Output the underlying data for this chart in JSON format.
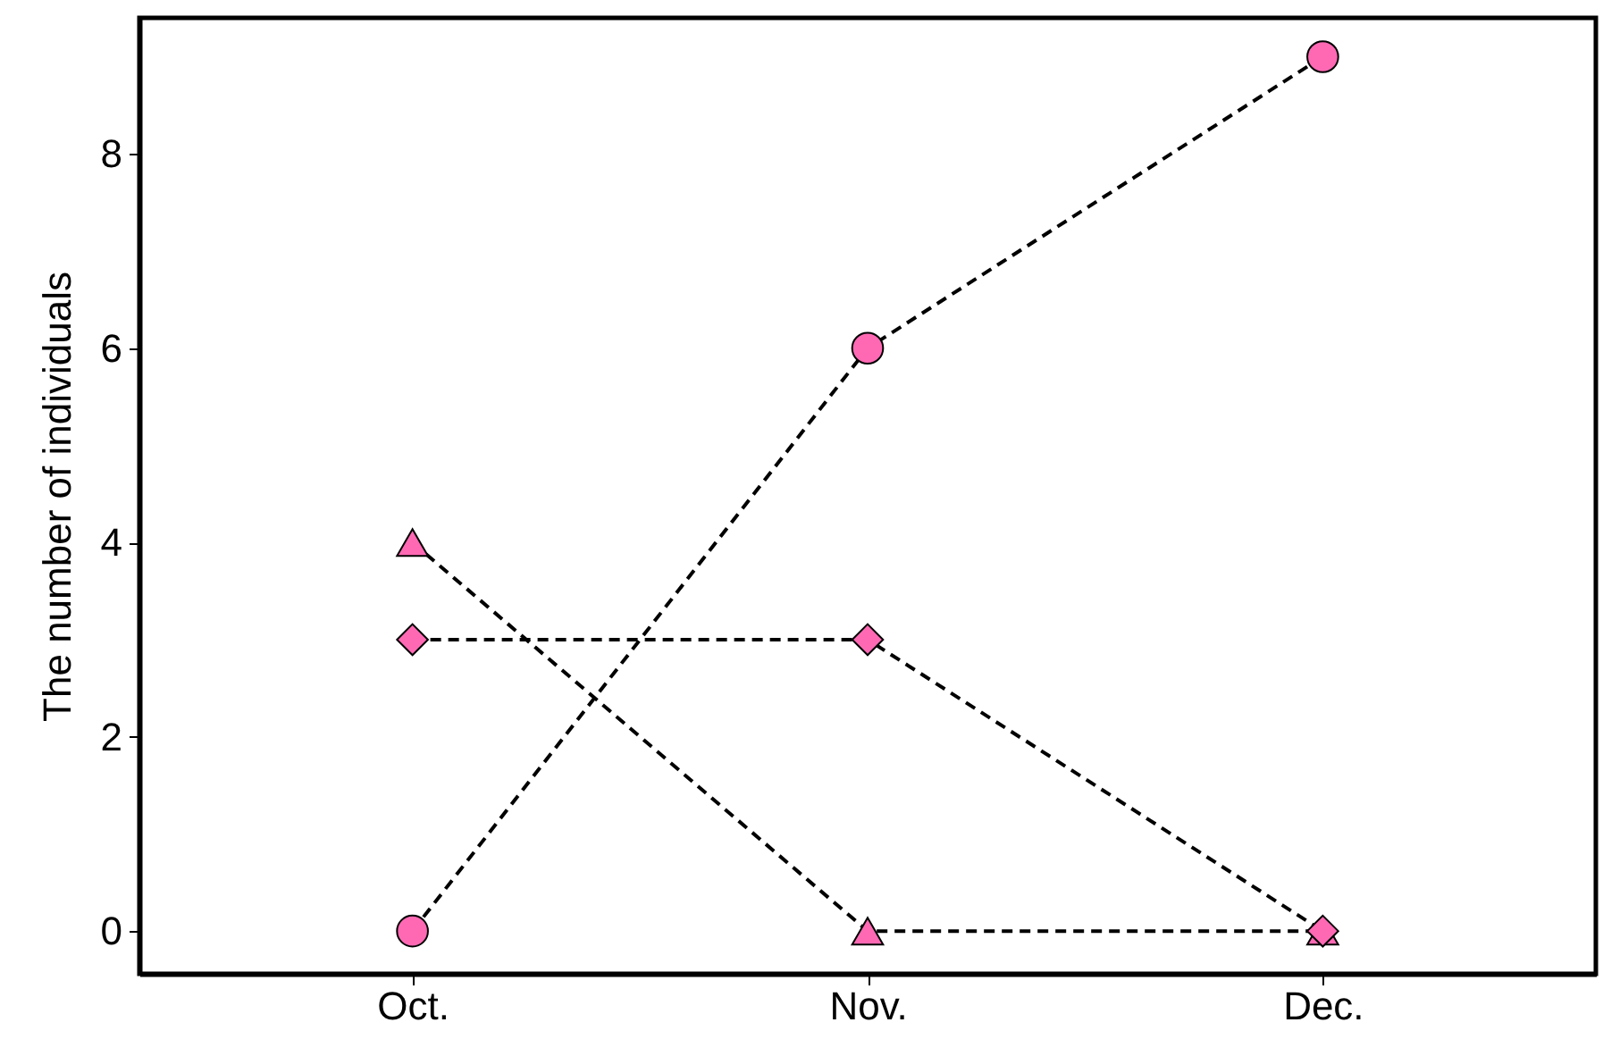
{
  "chart_data": {
    "type": "line",
    "ylabel": "The number of individuals",
    "categories": [
      "Oct.",
      "Nov.",
      "Dec."
    ],
    "series": [
      {
        "color": "#ff69b4",
        "marker": "circle",
        "values": [
          0,
          6,
          9
        ]
      },
      {
        "color": "#ff69b4",
        "marker": "triangle",
        "values": [
          4,
          0,
          0
        ]
      },
      {
        "color": "#ff69b4",
        "marker": "diamond",
        "values": [
          3,
          3,
          0
        ]
      }
    ],
    "ylim": [
      -0.44,
      9.4
    ],
    "yticks": [
      0,
      2,
      4,
      6,
      8
    ],
    "grid": false,
    "line_style": "dashed"
  }
}
